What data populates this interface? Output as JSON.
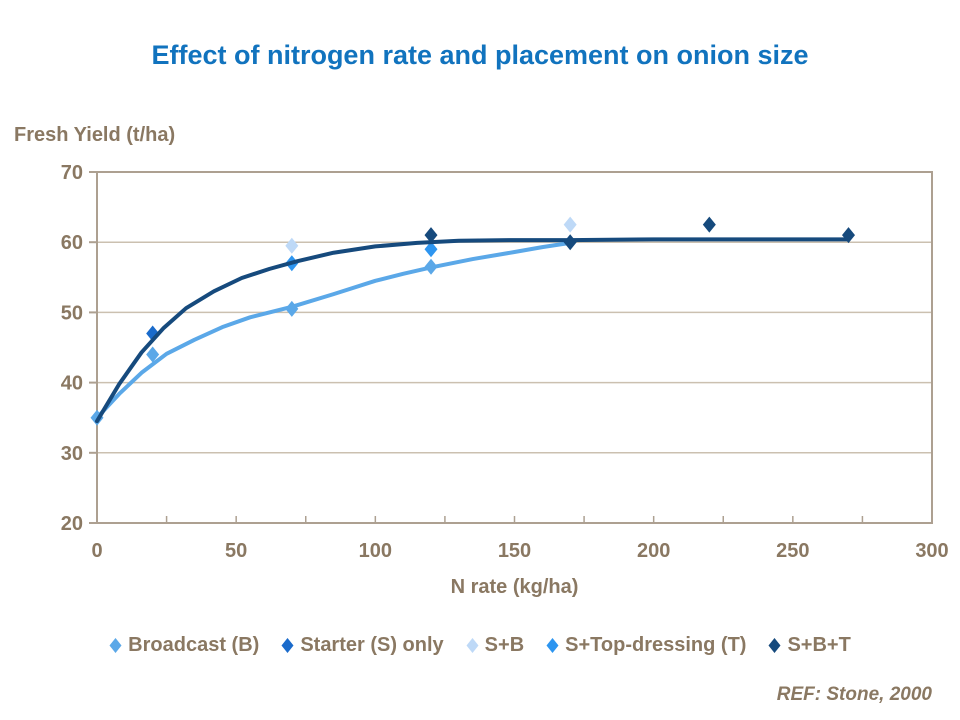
{
  "colors": {
    "title": "#1173BE",
    "text": "#8A7862",
    "axis_border": "#ADA091",
    "gridline": "#CBC0B0",
    "plot_background": "#FFFFFF"
  },
  "ref_note": "REF: Stone, 2000",
  "chart_data": {
    "type": "scatter",
    "title": "Effect of nitrogen rate and placement on onion size",
    "xlabel": "N rate (kg/ha)",
    "ylabel": "Fresh Yield (t/ha)",
    "xlim": [
      0,
      300
    ],
    "ylim": [
      20,
      70
    ],
    "xticks": [
      0,
      50,
      100,
      150,
      200,
      250,
      300
    ],
    "minor_xtick_step": 25,
    "yticks": [
      20,
      30,
      40,
      50,
      60,
      70
    ],
    "grid": "horizontal-only",
    "legend_position": "bottom",
    "series": [
      {
        "name": "Broadcast (B)",
        "color": "#5BA8E8",
        "marker": "diamond",
        "points": [
          [
            0,
            35
          ],
          [
            20,
            44
          ],
          [
            70,
            50.5
          ],
          [
            120,
            56.5
          ]
        ],
        "fit": [
          [
            0,
            35
          ],
          [
            8,
            38.4
          ],
          [
            16,
            41.4
          ],
          [
            25,
            44.1
          ],
          [
            35,
            46.1
          ],
          [
            45,
            47.9
          ],
          [
            55,
            49.3
          ],
          [
            70,
            50.8
          ],
          [
            85,
            52.6
          ],
          [
            100,
            54.5
          ],
          [
            110,
            55.5
          ],
          [
            120,
            56.4
          ],
          [
            135,
            57.6
          ],
          [
            150,
            58.6
          ],
          [
            160,
            59.3
          ],
          [
            170,
            59.9
          ]
        ]
      },
      {
        "name": "Starter (S) only",
        "color": "#1A6BCB",
        "marker": "diamond",
        "points": [
          [
            20,
            47
          ]
        ],
        "fit": []
      },
      {
        "name": "S+B",
        "color": "#BED9F7",
        "marker": "diamond",
        "points": [
          [
            70,
            59.5
          ],
          [
            170,
            62.5
          ]
        ],
        "fit": []
      },
      {
        "name": "S+Top-dressing (T)",
        "color": "#2D95F0",
        "marker": "diamond",
        "points": [
          [
            70,
            57
          ],
          [
            120,
            59
          ]
        ],
        "fit": []
      },
      {
        "name": "S+B+T",
        "color": "#164A7D",
        "marker": "diamond",
        "points": [
          [
            120,
            61
          ],
          [
            170,
            60
          ],
          [
            220,
            62.5
          ],
          [
            270,
            61
          ]
        ],
        "fit": [
          [
            0,
            34.5
          ],
          [
            8,
            39.8
          ],
          [
            16,
            44.3
          ],
          [
            24,
            47.8
          ],
          [
            32,
            50.6
          ],
          [
            42,
            53
          ],
          [
            52,
            54.9
          ],
          [
            62,
            56.2
          ],
          [
            72,
            57.3
          ],
          [
            85,
            58.5
          ],
          [
            100,
            59.4
          ],
          [
            115,
            59.9
          ],
          [
            130,
            60.2
          ],
          [
            150,
            60.3
          ],
          [
            170,
            60.3
          ],
          [
            200,
            60.4
          ],
          [
            235,
            60.4
          ],
          [
            270,
            60.4
          ]
        ]
      }
    ]
  }
}
